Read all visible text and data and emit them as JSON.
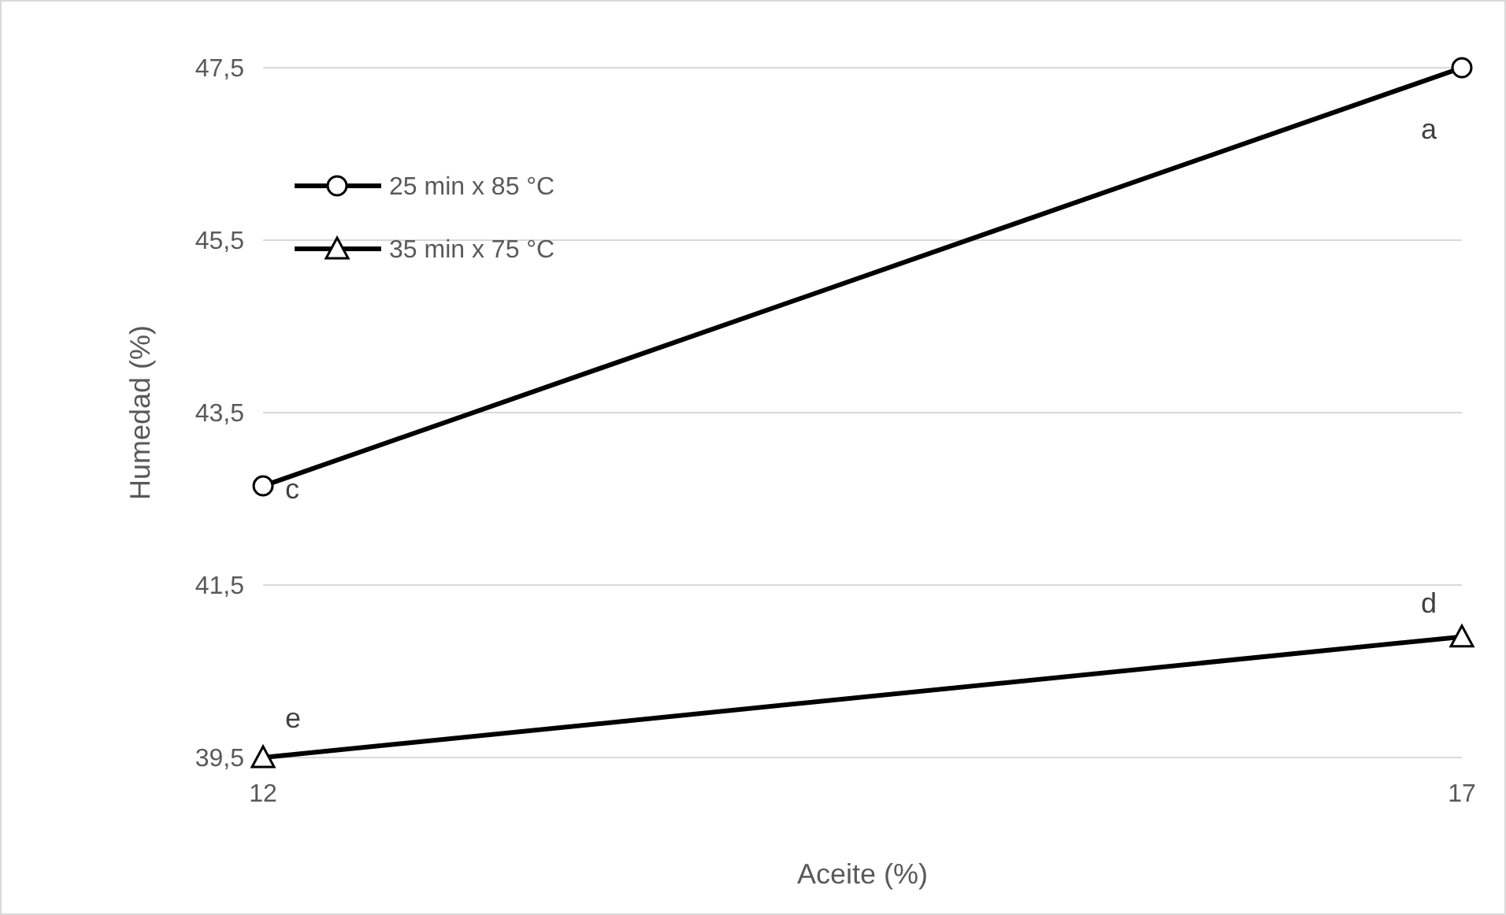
{
  "chart_data": {
    "type": "line",
    "xlabel": "Aceite (%)",
    "ylabel": "Humedad (%)",
    "x": [
      12,
      17
    ],
    "xlim": [
      12,
      17
    ],
    "xticks": [
      12,
      17
    ],
    "ylim": [
      39.5,
      47.5
    ],
    "yticks": [
      {
        "value": 39.5,
        "label": "39,5"
      },
      {
        "value": 41.5,
        "label": "41,5"
      },
      {
        "value": 43.5,
        "label": "43,5"
      },
      {
        "value": 45.5,
        "label": "45,5"
      },
      {
        "value": 47.5,
        "label": "47,5"
      }
    ],
    "grid": "y",
    "legend": "top left",
    "series": [
      {
        "name": "25 min x 85 °C",
        "color": "#000000",
        "marker": "circle",
        "values": [
          42.65,
          47.5
        ],
        "value_labels": [
          "c",
          "a"
        ]
      },
      {
        "name": "35 min x 75 °C",
        "color": "#000000",
        "marker": "triangle",
        "values": [
          39.5,
          40.9
        ],
        "value_labels": [
          "e",
          "d"
        ]
      }
    ]
  }
}
